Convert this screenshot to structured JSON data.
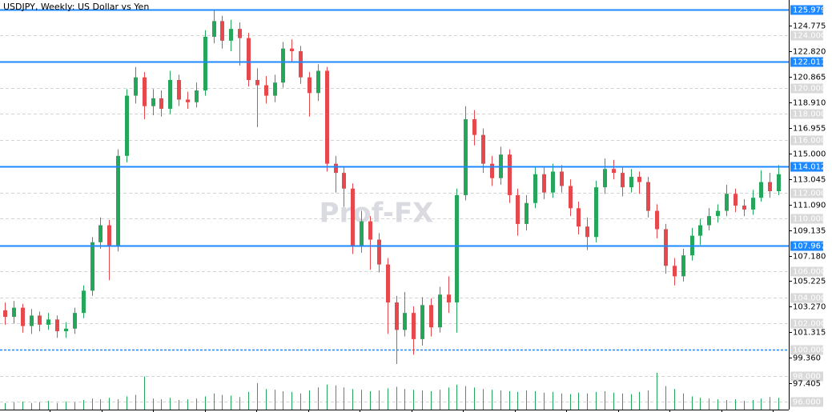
{
  "chart_data": {
    "type": "candlestick",
    "title": "USDJPY, Weekly: US Dollar vs Yen",
    "watermark": "Prof-FX",
    "up_color": "#26a65b",
    "down_color": "#e5484d",
    "volume_color": "#26a65b",
    "level_color": "#1e88ff",
    "ylim": [
      95.23,
      126.71
    ],
    "yticks": [
      {
        "value": 124.775,
        "label": "124.775"
      },
      {
        "value": 122.82,
        "label": "122.820"
      },
      {
        "value": 120.865,
        "label": "120.865"
      },
      {
        "value": 118.91,
        "label": "118.910"
      },
      {
        "value": 116.955,
        "label": "116.955"
      },
      {
        "value": 115,
        "label": "115.000"
      },
      {
        "value": 113.045,
        "label": "113.045"
      },
      {
        "value": 111.09,
        "label": "111.090"
      },
      {
        "value": 109.135,
        "label": "109.135"
      },
      {
        "value": 107.18,
        "label": "107.180"
      },
      {
        "value": 105.225,
        "label": "105.225"
      },
      {
        "value": 103.27,
        "label": "103.270"
      },
      {
        "value": 101.315,
        "label": "101.315"
      },
      {
        "value": 99.36,
        "label": "99.360"
      },
      {
        "value": 97.405,
        "label": "97.405"
      }
    ],
    "grid_levels": [
      {
        "value": 124,
        "label": "124.000"
      },
      {
        "value": 120,
        "label": "120.000"
      },
      {
        "value": 118,
        "label": "118.000"
      },
      {
        "value": 116,
        "label": "116.000"
      },
      {
        "value": 112,
        "label": "112.000"
      },
      {
        "value": 110,
        "label": "110.000"
      },
      {
        "value": 106,
        "label": "106.000"
      },
      {
        "value": 104,
        "label": "104.000"
      },
      {
        "value": 102,
        "label": "102.000"
      },
      {
        "value": 100,
        "label": "100.000"
      },
      {
        "value": 98,
        "label": "98.000"
      },
      {
        "value": 96,
        "label": "96.000"
      }
    ],
    "levels": [
      {
        "value": 125.979,
        "label": "125.979"
      },
      {
        "value": 122.011,
        "label": "122.011"
      },
      {
        "value": 114.012,
        "label": "114.012"
      },
      {
        "value": 107.967,
        "label": "107.967"
      }
    ],
    "dashed_level": 100,
    "open": [
      103.0,
      102.5,
      103.2,
      101.8,
      102.6,
      101.9,
      102.3,
      101.4,
      101.6,
      102.8,
      104.5,
      108.2,
      109.5,
      107.9,
      114.8,
      119.4,
      120.8,
      118.6,
      119.2,
      118.4,
      120.6,
      119.1,
      118.9,
      119.8,
      123.9,
      125.1,
      123.6,
      124.5,
      123.8,
      120.6,
      120.2,
      119.4,
      120.4,
      123.0,
      122.8,
      120.8,
      119.6,
      121.3,
      114.2,
      113.5,
      112.3,
      107.9,
      109.8,
      108.4,
      106.5,
      103.6,
      101.5,
      102.8,
      100.8,
      103.4,
      101.7,
      104.2,
      103.6,
      111.8,
      117.6,
      116.4,
      114.2,
      113.1,
      114.9,
      111.8,
      109.6,
      111.2,
      113.4,
      112.0,
      113.6,
      112.5,
      110.8,
      109.4,
      108.6,
      112.4,
      113.8,
      113.5,
      112.4,
      113.2,
      112.8,
      110.6,
      109.2,
      106.4,
      105.6,
      107.2,
      108.7,
      109.5,
      110.2,
      110.6,
      111.9,
      111.0,
      110.7,
      111.6,
      112.8,
      112.1
    ],
    "high": [
      103.6,
      103.7,
      103.5,
      103.1,
      102.9,
      102.8,
      102.6,
      102.1,
      103.2,
      104.9,
      108.6,
      110.1,
      109.9,
      115.3,
      119.9,
      121.6,
      121.2,
      119.9,
      119.8,
      121.3,
      121.0,
      119.7,
      120.4,
      124.4,
      125.9,
      125.5,
      125.2,
      125.0,
      124.2,
      121.5,
      120.9,
      121.0,
      123.5,
      123.7,
      123.2,
      121.2,
      121.8,
      121.6,
      114.8,
      114.0,
      112.7,
      110.6,
      110.2,
      108.9,
      107.0,
      104.1,
      104.4,
      103.3,
      104.0,
      103.9,
      104.8,
      105.6,
      112.3,
      118.6,
      118.3,
      116.9,
      114.8,
      115.5,
      115.3,
      112.3,
      111.8,
      114.0,
      113.9,
      114.2,
      114.1,
      113.0,
      111.3,
      110.1,
      112.9,
      114.6,
      114.5,
      114.0,
      113.8,
      113.6,
      113.2,
      111.1,
      109.6,
      107.0,
      107.7,
      109.3,
      110.0,
      110.8,
      111.1,
      112.6,
      112.3,
      111.5,
      112.2,
      113.7,
      113.5,
      114.1
    ],
    "low": [
      101.9,
      102.0,
      101.3,
      101.2,
      101.4,
      101.5,
      100.9,
      100.9,
      101.2,
      102.4,
      104.1,
      107.7,
      105.3,
      107.5,
      114.3,
      118.8,
      117.6,
      117.9,
      117.8,
      118.0,
      118.6,
      118.4,
      118.5,
      119.4,
      123.4,
      123.0,
      122.8,
      121.7,
      120.1,
      117.0,
      118.8,
      118.9,
      120.0,
      122.0,
      120.3,
      117.8,
      119.0,
      113.6,
      112.0,
      110.9,
      107.3,
      107.4,
      106.1,
      105.9,
      101.2,
      98.9,
      101.0,
      99.6,
      100.3,
      101.0,
      101.3,
      102.8,
      101.3,
      111.4,
      115.6,
      113.5,
      112.5,
      112.6,
      111.2,
      108.7,
      109.1,
      110.8,
      111.5,
      111.6,
      112.0,
      110.2,
      108.8,
      107.6,
      108.2,
      111.9,
      113.0,
      111.7,
      112.0,
      111.9,
      110.1,
      108.5,
      105.8,
      104.9,
      105.2,
      106.8,
      108.0,
      109.1,
      109.7,
      110.2,
      110.5,
      110.2,
      110.3,
      111.3,
      111.6,
      111.8
    ],
    "close": [
      102.5,
      103.2,
      101.8,
      102.6,
      101.9,
      102.3,
      101.4,
      101.6,
      102.8,
      104.5,
      108.2,
      109.5,
      107.9,
      114.8,
      119.4,
      120.8,
      118.6,
      119.2,
      118.4,
      120.6,
      119.1,
      118.9,
      119.8,
      123.9,
      125.1,
      123.6,
      124.5,
      123.8,
      120.6,
      120.2,
      119.4,
      120.4,
      123.0,
      122.8,
      120.8,
      119.6,
      121.3,
      114.2,
      113.5,
      112.3,
      107.9,
      109.8,
      108.4,
      106.5,
      103.6,
      101.5,
      102.8,
      100.8,
      103.4,
      101.7,
      104.2,
      103.6,
      111.8,
      117.6,
      116.4,
      114.2,
      113.1,
      114.9,
      111.8,
      109.6,
      111.2,
      113.4,
      112.0,
      113.6,
      112.5,
      110.8,
      109.4,
      108.6,
      112.4,
      113.8,
      113.5,
      112.4,
      113.2,
      112.8,
      110.6,
      109.2,
      106.4,
      105.6,
      107.2,
      108.7,
      109.5,
      110.2,
      110.6,
      111.9,
      111.0,
      110.7,
      111.6,
      112.8,
      112.1,
      113.4
    ],
    "volume": [
      9,
      10,
      11,
      9,
      10,
      12,
      9,
      11,
      10,
      13,
      15,
      14,
      16,
      14,
      18,
      20,
      45,
      15,
      14,
      16,
      13,
      14,
      15,
      18,
      22,
      20,
      19,
      17,
      24,
      36,
      28,
      27,
      25,
      24,
      22,
      26,
      30,
      34,
      33,
      30,
      28,
      27,
      25,
      26,
      29,
      31,
      28,
      27,
      26,
      25,
      27,
      30,
      34,
      32,
      30,
      28,
      27,
      26,
      25,
      24,
      26,
      25,
      23,
      24,
      22,
      21,
      23,
      22,
      24,
      25,
      23,
      22,
      21,
      24,
      26,
      50,
      32,
      28,
      22,
      18,
      16,
      15,
      14,
      13,
      14,
      12,
      13,
      15,
      17,
      16
    ]
  }
}
